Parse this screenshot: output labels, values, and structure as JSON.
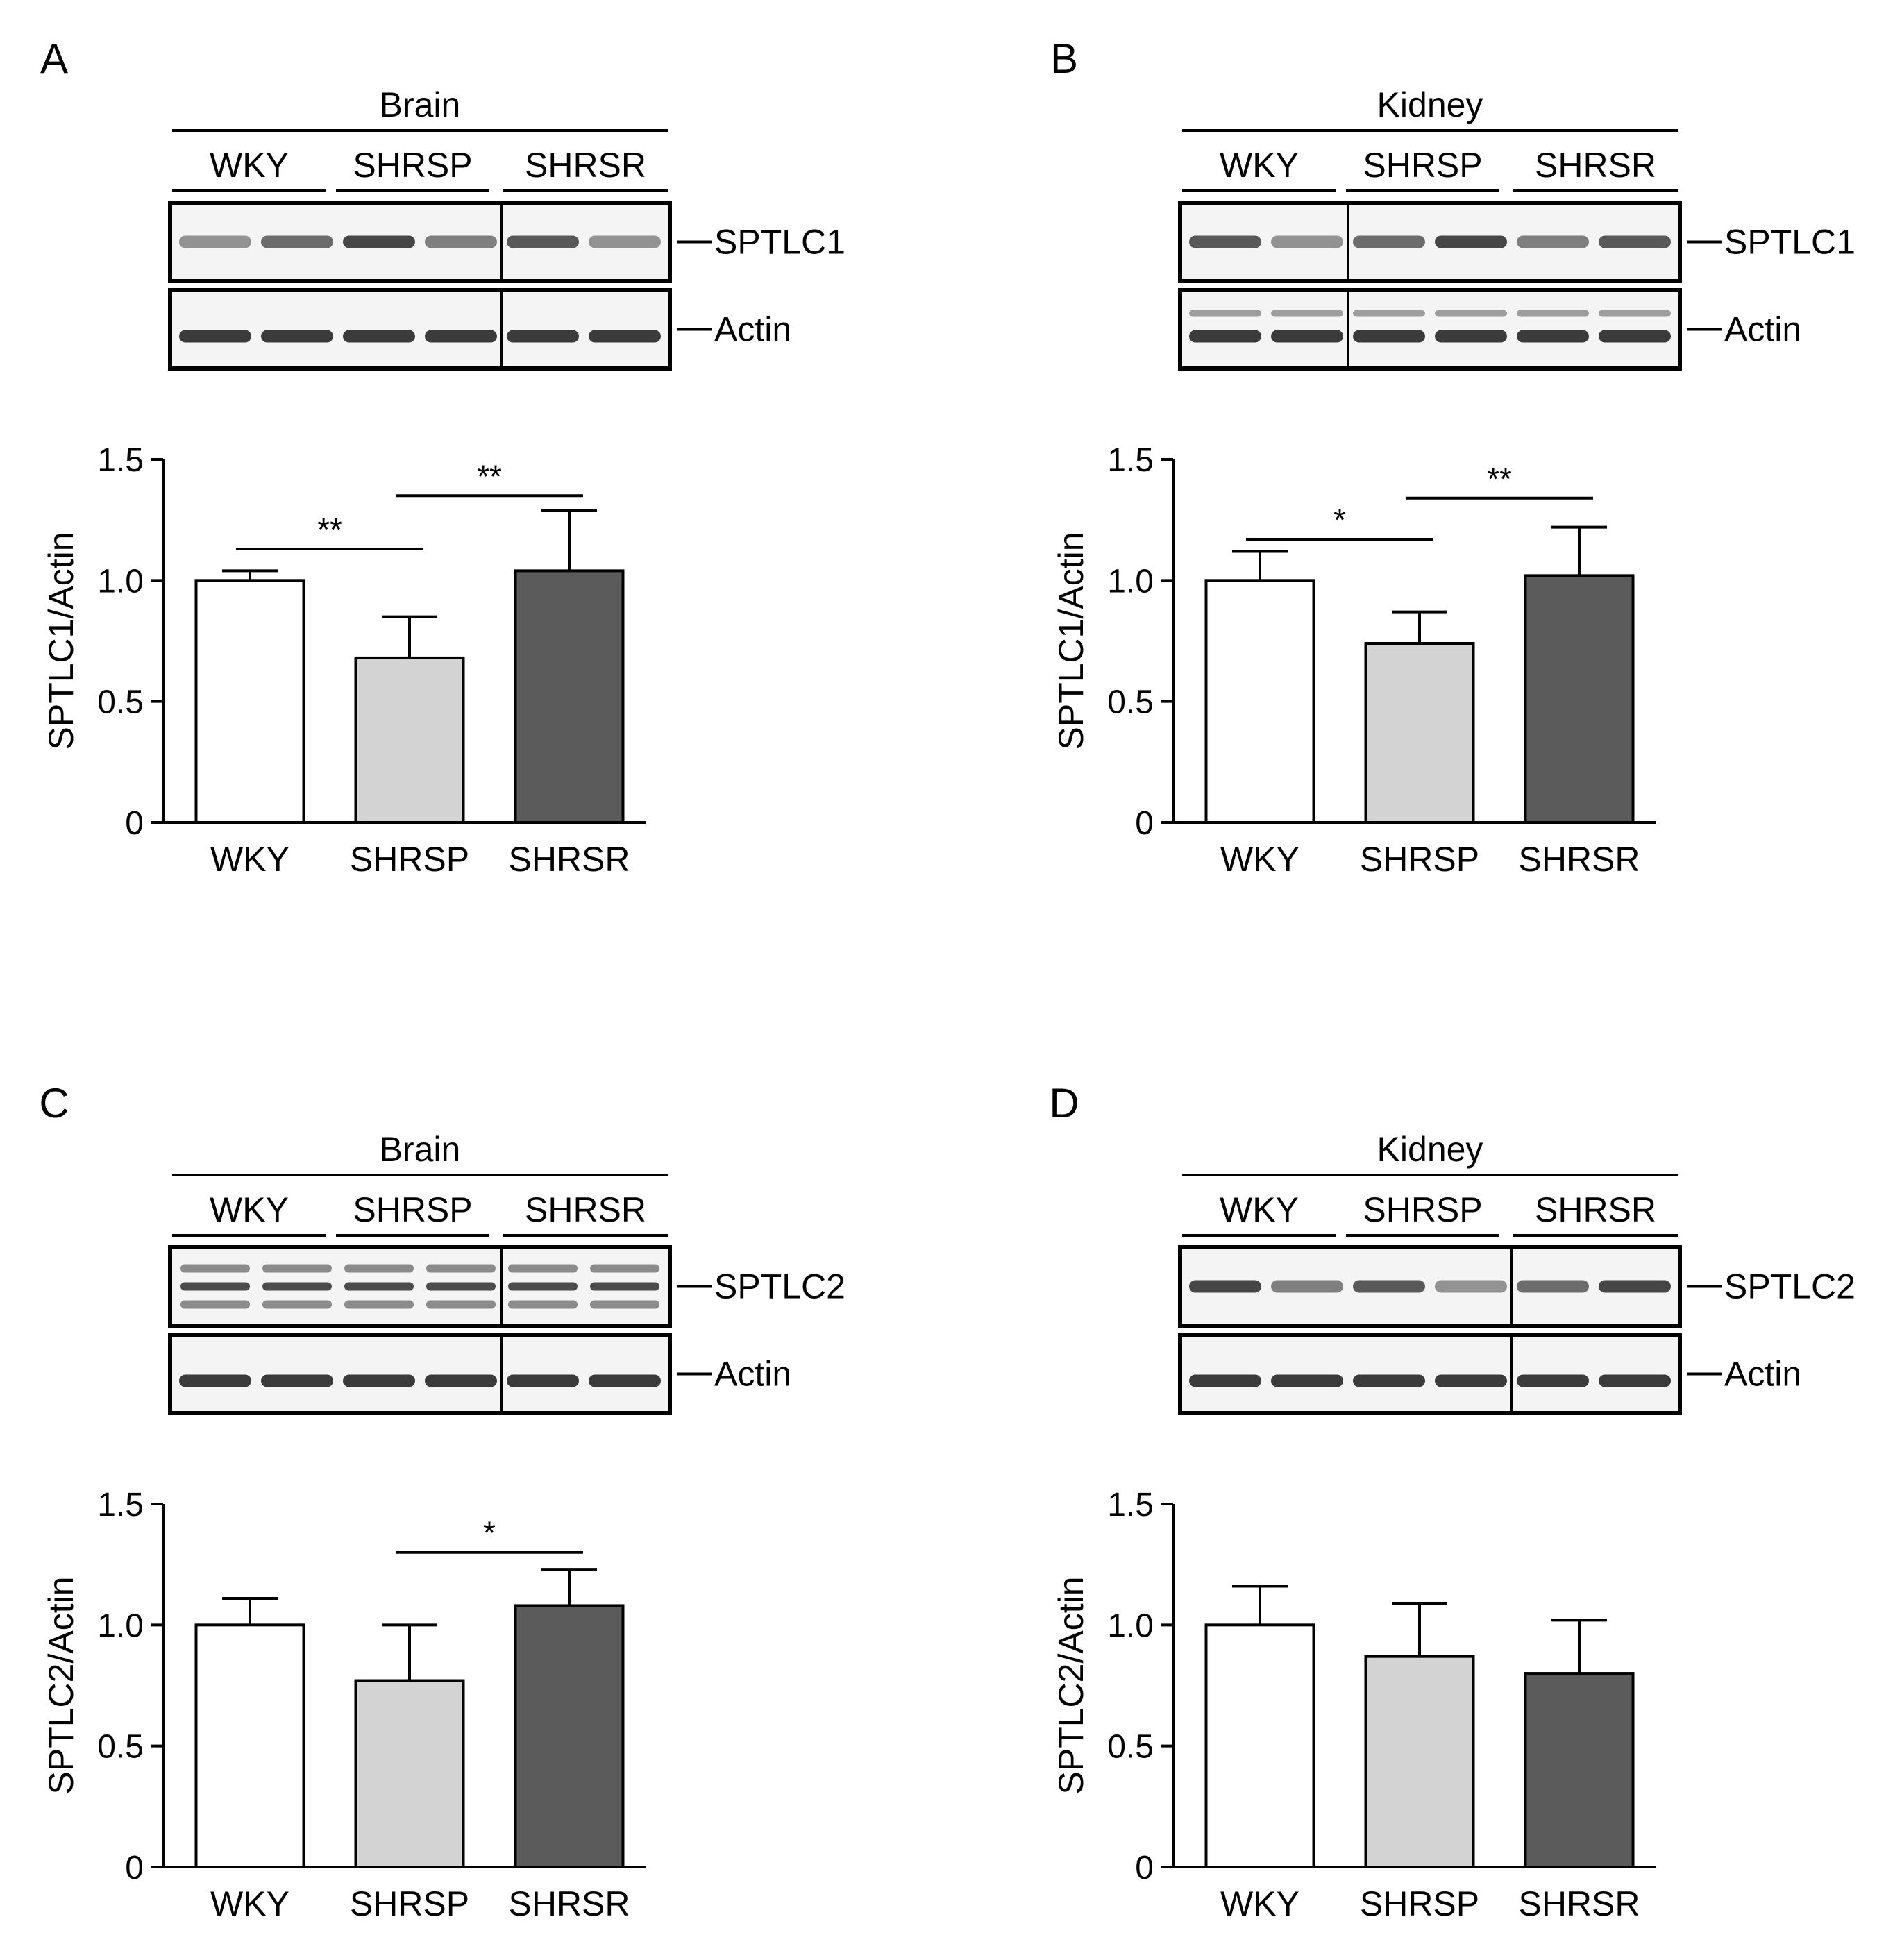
{
  "panels": [
    {
      "letter": "A",
      "tissue": "Brain",
      "groups": [
        "WKY",
        "SHRSP",
        "SHRSR"
      ],
      "blots": [
        "SPTLC1",
        "Actin"
      ],
      "divider_after_lane": 4
    },
    {
      "letter": "B",
      "tissue": "Kidney",
      "groups": [
        "WKY",
        "SHRSP",
        "SHRSR"
      ],
      "blots": [
        "SPTLC1",
        "Actin"
      ],
      "divider_after_lane": 2
    },
    {
      "letter": "C",
      "tissue": "Brain",
      "groups": [
        "WKY",
        "SHRSP",
        "SHRSR"
      ],
      "blots": [
        "SPTLC2",
        "Actin"
      ],
      "divider_after_lane": 4
    },
    {
      "letter": "D",
      "tissue": "Kidney",
      "groups": [
        "WKY",
        "SHRSP",
        "SHRSR"
      ],
      "blots": [
        "SPTLC2",
        "Actin"
      ],
      "divider_after_lane": 4
    }
  ],
  "colors": {
    "WKY": "#ffffff",
    "SHRSP": "#d3d3d3",
    "SHRSR": "#5b5b5b",
    "axis": "#000000"
  },
  "chart_data": [
    {
      "type": "bar",
      "panel": "A",
      "categories": [
        "WKY",
        "SHRSP",
        "SHRSR"
      ],
      "values": [
        1.0,
        0.68,
        1.04
      ],
      "errors": [
        0.04,
        0.17,
        0.25
      ],
      "ylabel": "SPTLC1/Actin",
      "ylim": [
        0,
        1.5
      ],
      "yticks": [
        "0",
        "0.5",
        "1.0",
        "1.5"
      ],
      "significance": [
        {
          "from": 0,
          "to": 1,
          "label": "**",
          "y": 1.13
        },
        {
          "from": 1,
          "to": 2,
          "label": "**",
          "y": 1.35
        }
      ]
    },
    {
      "type": "bar",
      "panel": "B",
      "categories": [
        "WKY",
        "SHRSP",
        "SHRSR"
      ],
      "values": [
        1.0,
        0.74,
        1.02
      ],
      "errors": [
        0.12,
        0.13,
        0.2
      ],
      "ylabel": "SPTLC1/Actin",
      "ylim": [
        0,
        1.5
      ],
      "yticks": [
        "0",
        "0.5",
        "1.0",
        "1.5"
      ],
      "significance": [
        {
          "from": 0,
          "to": 1,
          "label": "*",
          "y": 1.17
        },
        {
          "from": 1,
          "to": 2,
          "label": "**",
          "y": 1.34
        }
      ]
    },
    {
      "type": "bar",
      "panel": "C",
      "categories": [
        "WKY",
        "SHRSP",
        "SHRSR"
      ],
      "values": [
        1.0,
        0.77,
        1.08
      ],
      "errors": [
        0.11,
        0.23,
        0.15
      ],
      "ylabel": "SPTLC2/Actin",
      "ylim": [
        0,
        1.5
      ],
      "yticks": [
        "0",
        "0.5",
        "1.0",
        "1.5"
      ],
      "significance": [
        {
          "from": 1,
          "to": 2,
          "label": "*",
          "y": 1.3
        }
      ]
    },
    {
      "type": "bar",
      "panel": "D",
      "categories": [
        "WKY",
        "SHRSP",
        "SHRSR"
      ],
      "values": [
        1.0,
        0.87,
        0.8
      ],
      "errors": [
        0.16,
        0.22,
        0.22
      ],
      "ylabel": "SPTLC2/Actin",
      "ylim": [
        0,
        1.5
      ],
      "yticks": [
        "0",
        "0.5",
        "1.0",
        "1.5"
      ],
      "significance": []
    }
  ]
}
